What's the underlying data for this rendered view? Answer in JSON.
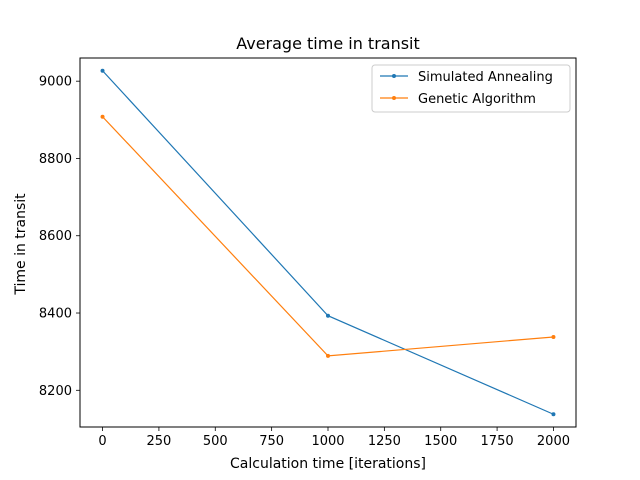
{
  "chart_data": {
    "type": "line",
    "title": "Average time in transit",
    "xlabel": "Calculation time [iterations]",
    "ylabel": "Time in transit",
    "x": [
      0,
      1000,
      2000
    ],
    "series": [
      {
        "name": "Simulated Annealing",
        "color": "#1f77b4",
        "values": [
          9027,
          8393,
          8138
        ]
      },
      {
        "name": "Genetic Algorithm",
        "color": "#ff7f0e",
        "values": [
          8908,
          8289,
          8338
        ]
      }
    ],
    "xlim": [
      -100,
      2100
    ],
    "ylim": [
      8105,
      9060
    ],
    "xticks": [
      0,
      250,
      500,
      750,
      1000,
      1250,
      1500,
      1750,
      2000
    ],
    "yticks": [
      8200,
      8400,
      8600,
      8800,
      9000
    ],
    "grid": false,
    "legend_position": "top-right"
  }
}
